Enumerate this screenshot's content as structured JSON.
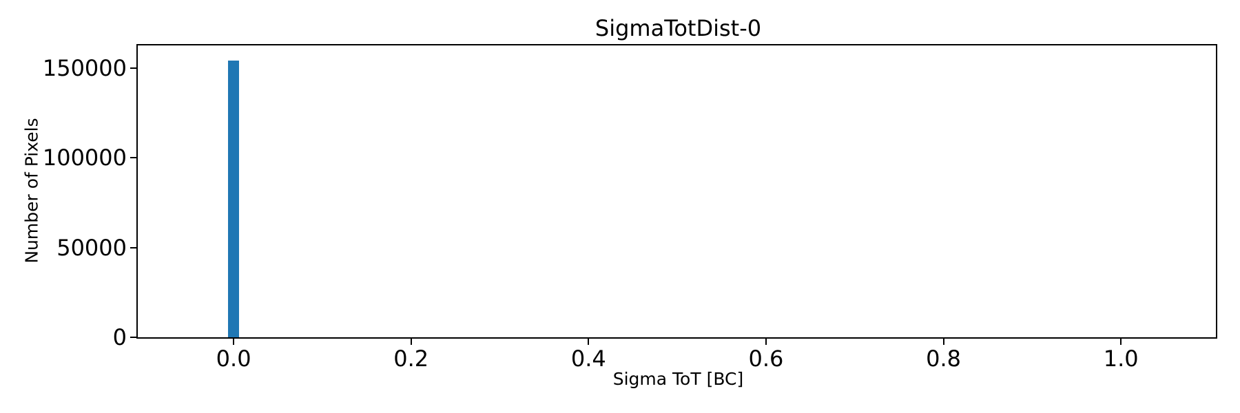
{
  "figure": {
    "background_color": "#ffffff",
    "spine_color": "#000000",
    "text_color": "#000000"
  },
  "chart_data": {
    "type": "bar",
    "title": "SigmaTotDist-0",
    "xlabel": "Sigma ToT [BC]",
    "ylabel": "Number of Pixels",
    "xlim": [
      -0.108,
      1.107
    ],
    "ylim": [
      0,
      162600
    ],
    "xticks": {
      "values": [
        0.0,
        0.2,
        0.4,
        0.6,
        0.8,
        1.0
      ],
      "labels": [
        "0.0",
        "0.2",
        "0.4",
        "0.6",
        "0.8",
        "1.0"
      ]
    },
    "yticks": {
      "values": [
        0,
        50000,
        100000,
        150000
      ],
      "labels": [
        "0",
        "50000",
        "100000",
        "150000"
      ]
    },
    "bars": [
      {
        "x0": -0.006,
        "x1": 0.006,
        "count": 154000
      }
    ],
    "bar_color": "#1f77b4",
    "grid": false,
    "legend": null
  }
}
